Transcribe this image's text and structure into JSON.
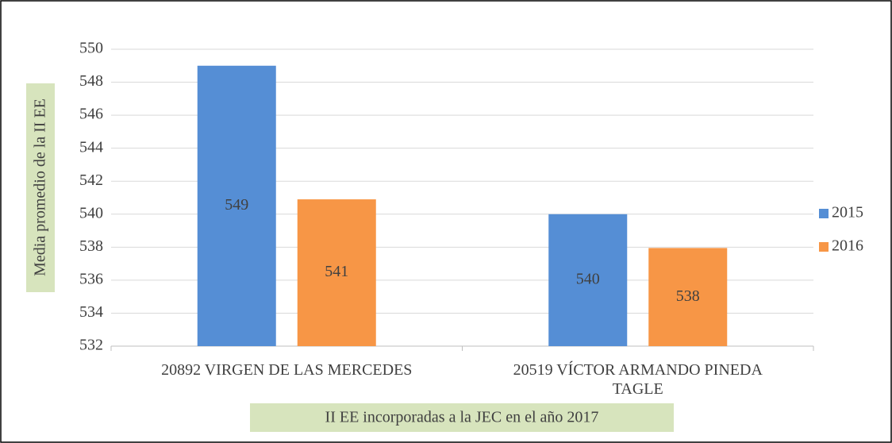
{
  "chart_data": {
    "type": "bar",
    "x_label": "II EE incorporadas a la JEC en el año 2017",
    "y_label": "Media promedio de la II EE",
    "categories": [
      "20892 VIRGEN DE LAS MERCEDES",
      "20519 VÍCTOR ARMANDO PINEDA TAGLE"
    ],
    "series": [
      {
        "name": "2015",
        "color": "#558ed5",
        "values": [
          549,
          540
        ],
        "value_labels": [
          "549",
          "540"
        ]
      },
      {
        "name": "2016",
        "color": "#f79646",
        "values": [
          540.9,
          537.95
        ],
        "value_labels": [
          "541",
          "538"
        ]
      }
    ],
    "ylim": [
      532,
      550
    ],
    "yticks": [
      532,
      534,
      536,
      538,
      540,
      542,
      544,
      546,
      548,
      550
    ],
    "grid": true,
    "legend": "right"
  }
}
